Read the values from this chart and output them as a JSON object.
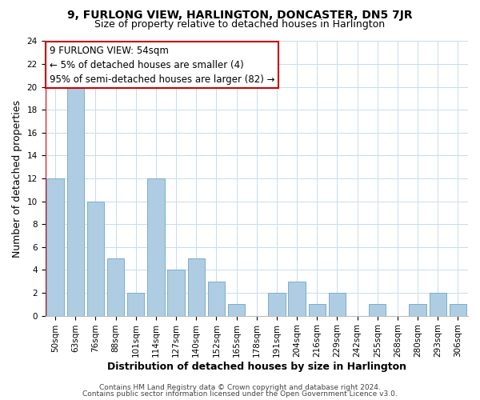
{
  "title": "9, FURLONG VIEW, HARLINGTON, DONCASTER, DN5 7JR",
  "subtitle": "Size of property relative to detached houses in Harlington",
  "xlabel": "Distribution of detached houses by size in Harlington",
  "ylabel": "Number of detached properties",
  "bar_labels": [
    "50sqm",
    "63sqm",
    "76sqm",
    "88sqm",
    "101sqm",
    "114sqm",
    "127sqm",
    "140sqm",
    "152sqm",
    "165sqm",
    "178sqm",
    "191sqm",
    "204sqm",
    "216sqm",
    "229sqm",
    "242sqm",
    "255sqm",
    "268sqm",
    "280sqm",
    "293sqm",
    "306sqm"
  ],
  "bar_values": [
    12,
    20,
    10,
    5,
    2,
    12,
    4,
    5,
    3,
    1,
    0,
    2,
    3,
    1,
    2,
    0,
    1,
    0,
    1,
    2,
    1
  ],
  "bar_color": "#aecde3",
  "bar_edge_color": "#7aaec8",
  "annotation_box_text": "9 FURLONG VIEW: 54sqm\n← 5% of detached houses are smaller (4)\n95% of semi-detached houses are larger (82) →",
  "annotation_box_edge_color": "#cc0000",
  "annotation_box_face_color": "#ffffff",
  "vline_color": "#cc0000",
  "ylim": [
    0,
    24
  ],
  "yticks": [
    0,
    2,
    4,
    6,
    8,
    10,
    12,
    14,
    16,
    18,
    20,
    22,
    24
  ],
  "footer1": "Contains HM Land Registry data © Crown copyright and database right 2024.",
  "footer2": "Contains public sector information licensed under the Open Government Licence v3.0.",
  "grid_color": "#c8dcea",
  "background_color": "#ffffff",
  "title_fontsize": 10,
  "subtitle_fontsize": 9,
  "axis_label_fontsize": 9,
  "tick_fontsize": 7.5,
  "annotation_fontsize": 8.5,
  "footer_fontsize": 6.5
}
